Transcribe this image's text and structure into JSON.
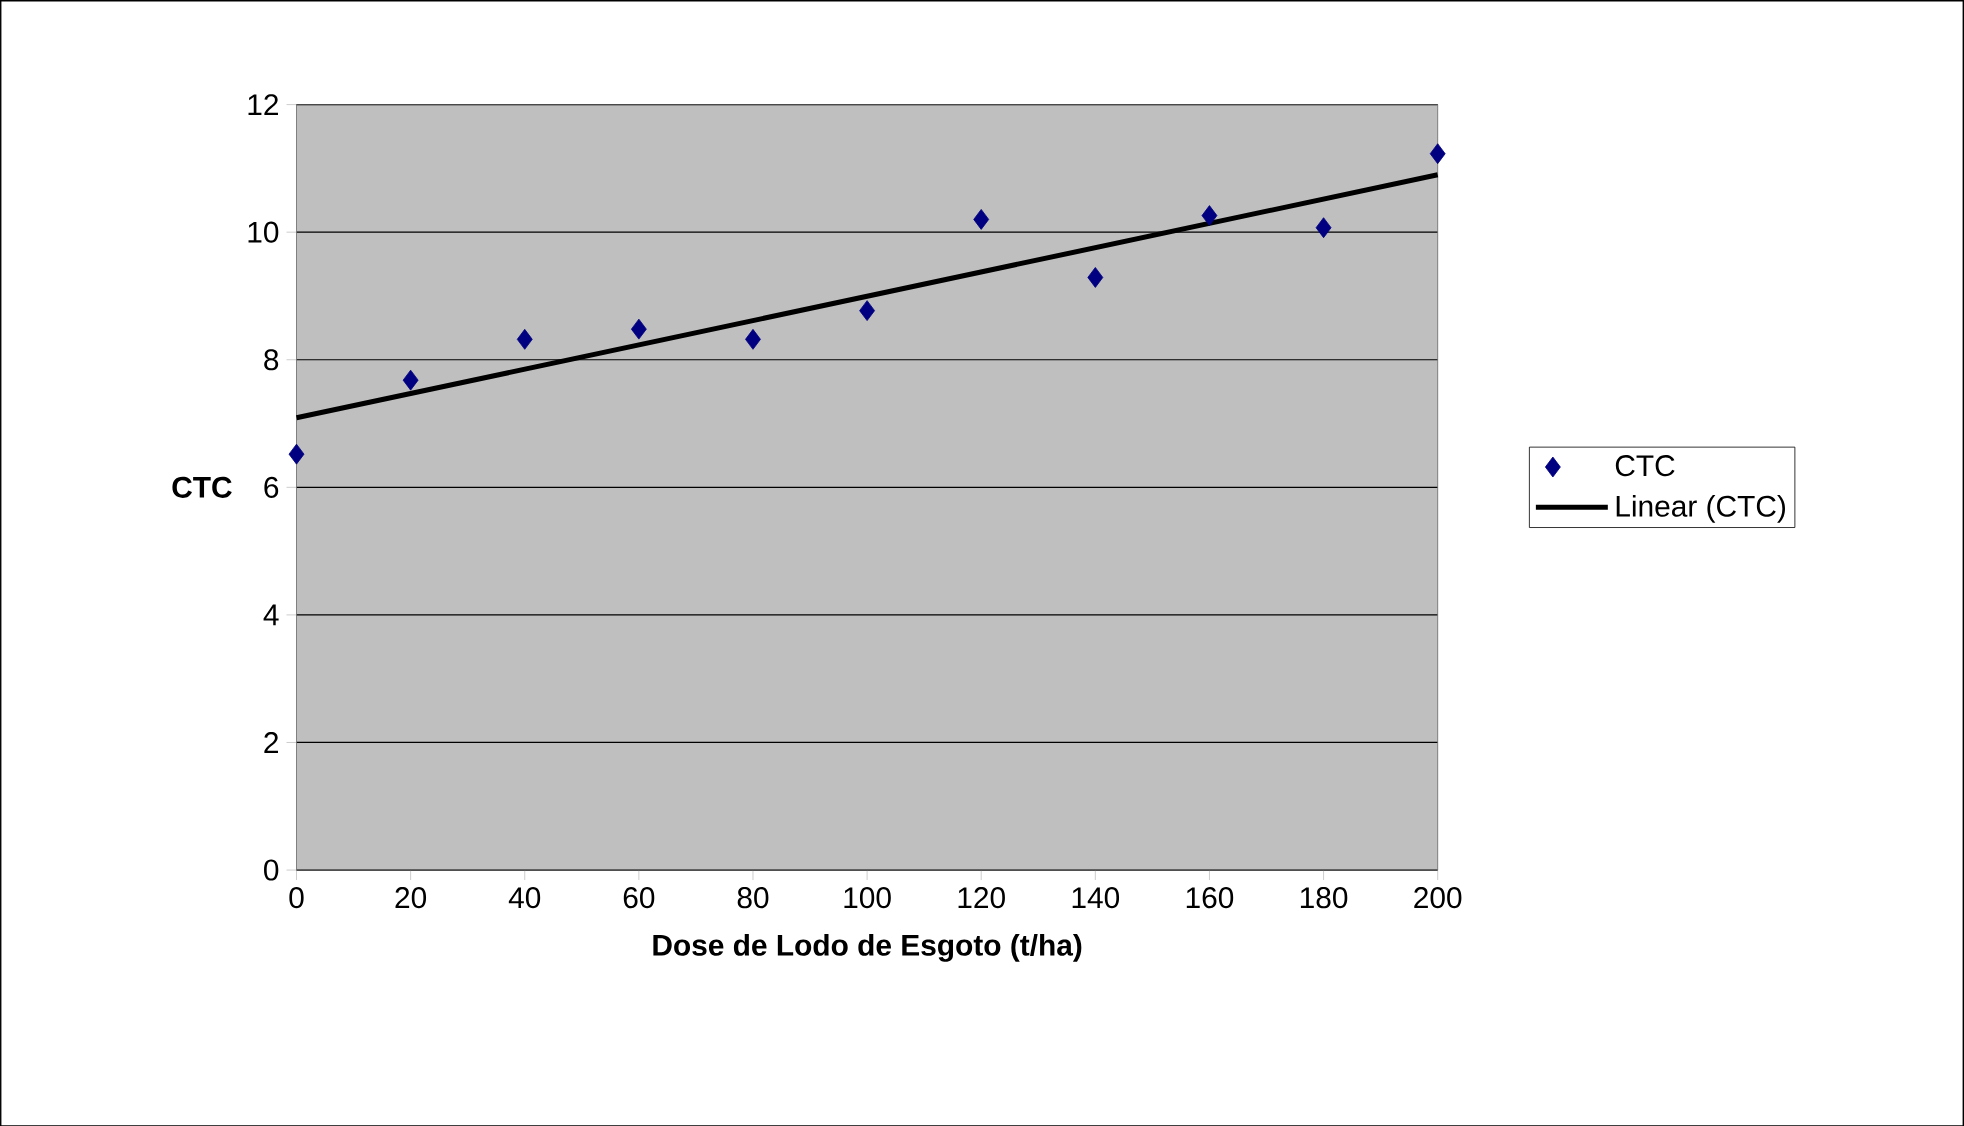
{
  "chart_data": {
    "type": "scatter",
    "xlabel": "Dose de Lodo de Esgoto (t/ha)",
    "ylabel": "CTC",
    "x": [
      0,
      20,
      40,
      60,
      80,
      100,
      120,
      140,
      160,
      180,
      200
    ],
    "series": [
      {
        "name": "CTC",
        "color": "#000080",
        "marker": "diamond",
        "values": [
          6.52,
          7.68,
          8.32,
          8.48,
          8.32,
          8.77,
          10.2,
          9.29,
          10.26,
          10.07,
          11.23
        ]
      },
      {
        "name": "Linear (CTC)",
        "type": "line",
        "color": "#000000",
        "x": [
          0,
          200
        ],
        "values": [
          7.09,
          10.9
        ]
      }
    ],
    "xlim": [
      0,
      200
    ],
    "ylim": [
      0,
      12
    ],
    "xticks": [
      0,
      20,
      40,
      60,
      80,
      100,
      120,
      140,
      160,
      180,
      200
    ],
    "yticks": [
      0,
      2,
      4,
      6,
      8,
      10,
      12
    ],
    "grid": "y",
    "legend": "right"
  }
}
